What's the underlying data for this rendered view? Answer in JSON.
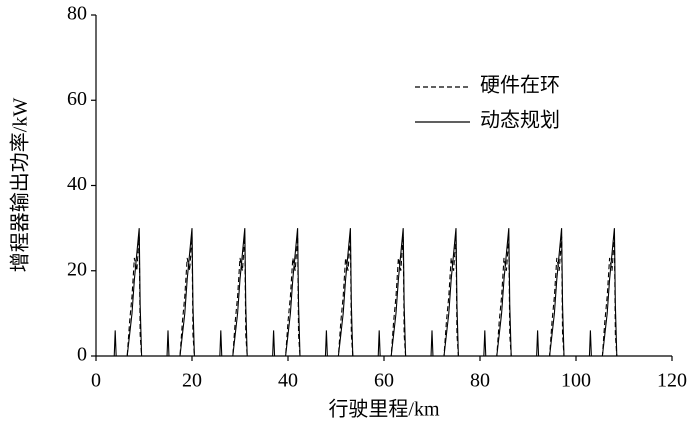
{
  "chart_data": {
    "type": "line",
    "xlabel": "行驶里程/km",
    "ylabel": "增程器输出功率/kW",
    "x": [
      0,
      3.8,
      4,
      4.2,
      6.5,
      7,
      7.5,
      8,
      8.5,
      9,
      9.2,
      9.5,
      11,
      14.8,
      15,
      15.2,
      17.5,
      18,
      18.5,
      19,
      19.5,
      20,
      20.2,
      20.5,
      22,
      25.8,
      26,
      26.2,
      28.5,
      29,
      29.5,
      30,
      30.5,
      31,
      31.2,
      31.5,
      33,
      36.8,
      37,
      37.2,
      39.5,
      40,
      40.5,
      41,
      41.5,
      42,
      42.2,
      42.5,
      44,
      47.8,
      48,
      48.2,
      50.5,
      51,
      51.5,
      52,
      52.5,
      53,
      53.2,
      53.5,
      55,
      58.8,
      59,
      59.2,
      61.5,
      62,
      62.5,
      63,
      63.5,
      64,
      64.2,
      64.5,
      66,
      69.8,
      70,
      70.2,
      72.5,
      73,
      73.5,
      74,
      74.5,
      75,
      75.2,
      75.5,
      77,
      80.8,
      81,
      81.2,
      83.5,
      84,
      84.5,
      85,
      85.5,
      86,
      86.2,
      86.5,
      88,
      91.8,
      92,
      92.2,
      94.5,
      95,
      95.5,
      96,
      96.5,
      97,
      97.2,
      97.5,
      99,
      102.8,
      103,
      103.2,
      105.5,
      106,
      106.5,
      107,
      107.5,
      108,
      108.2,
      108.5,
      120
    ],
    "series": [
      {
        "name": "硬件在环",
        "color": "#000000",
        "linestyle": "dashed",
        "values": [
          0,
          0,
          0,
          0,
          0,
          8,
          14,
          23,
          20,
          28,
          5,
          0,
          0,
          0,
          0,
          0,
          0,
          8,
          14,
          23,
          20,
          28,
          5,
          0,
          0,
          0,
          0,
          0,
          0,
          8,
          14,
          23,
          20,
          28,
          5,
          0,
          0,
          0,
          0,
          0,
          0,
          8,
          14,
          23,
          20,
          28,
          5,
          0,
          0,
          0,
          0,
          0,
          0,
          8,
          14,
          23,
          20,
          28,
          5,
          0,
          0,
          0,
          0,
          0,
          0,
          8,
          14,
          23,
          20,
          28,
          5,
          0,
          0,
          0,
          0,
          0,
          0,
          8,
          14,
          23,
          20,
          28,
          5,
          0,
          0,
          0,
          0,
          0,
          0,
          8,
          14,
          23,
          20,
          28,
          5,
          0,
          0,
          0,
          0,
          0,
          0,
          8,
          14,
          23,
          20,
          28,
          5,
          0,
          0,
          0,
          0,
          0,
          0,
          8,
          14,
          23,
          20,
          28,
          5,
          0,
          0
        ]
      },
      {
        "name": "动态规划",
        "color": "#000000",
        "linestyle": "solid",
        "values": [
          0,
          0,
          6,
          0,
          0,
          5,
          10,
          18,
          24,
          30,
          12,
          0,
          0,
          0,
          6,
          0,
          0,
          5,
          10,
          18,
          24,
          30,
          12,
          0,
          0,
          0,
          6,
          0,
          0,
          5,
          10,
          18,
          24,
          30,
          12,
          0,
          0,
          0,
          6,
          0,
          0,
          5,
          10,
          18,
          24,
          30,
          12,
          0,
          0,
          0,
          6,
          0,
          0,
          5,
          10,
          18,
          24,
          30,
          12,
          0,
          0,
          0,
          6,
          0,
          0,
          5,
          10,
          18,
          24,
          30,
          12,
          0,
          0,
          0,
          6,
          0,
          0,
          5,
          10,
          18,
          24,
          30,
          12,
          0,
          0,
          0,
          6,
          0,
          0,
          5,
          10,
          18,
          24,
          30,
          12,
          0,
          0,
          0,
          6,
          0,
          0,
          5,
          10,
          18,
          24,
          30,
          12,
          0,
          0,
          0,
          6,
          0,
          0,
          5,
          10,
          18,
          24,
          30,
          12,
          0,
          0
        ]
      }
    ],
    "xlim": [
      0,
      120
    ],
    "xticks": [
      0,
      20,
      40,
      60,
      80,
      100,
      120
    ],
    "ylim": [
      0,
      80
    ],
    "yticks": [
      0,
      20,
      40,
      60,
      80
    ],
    "grid": false,
    "legend": "upper right"
  }
}
